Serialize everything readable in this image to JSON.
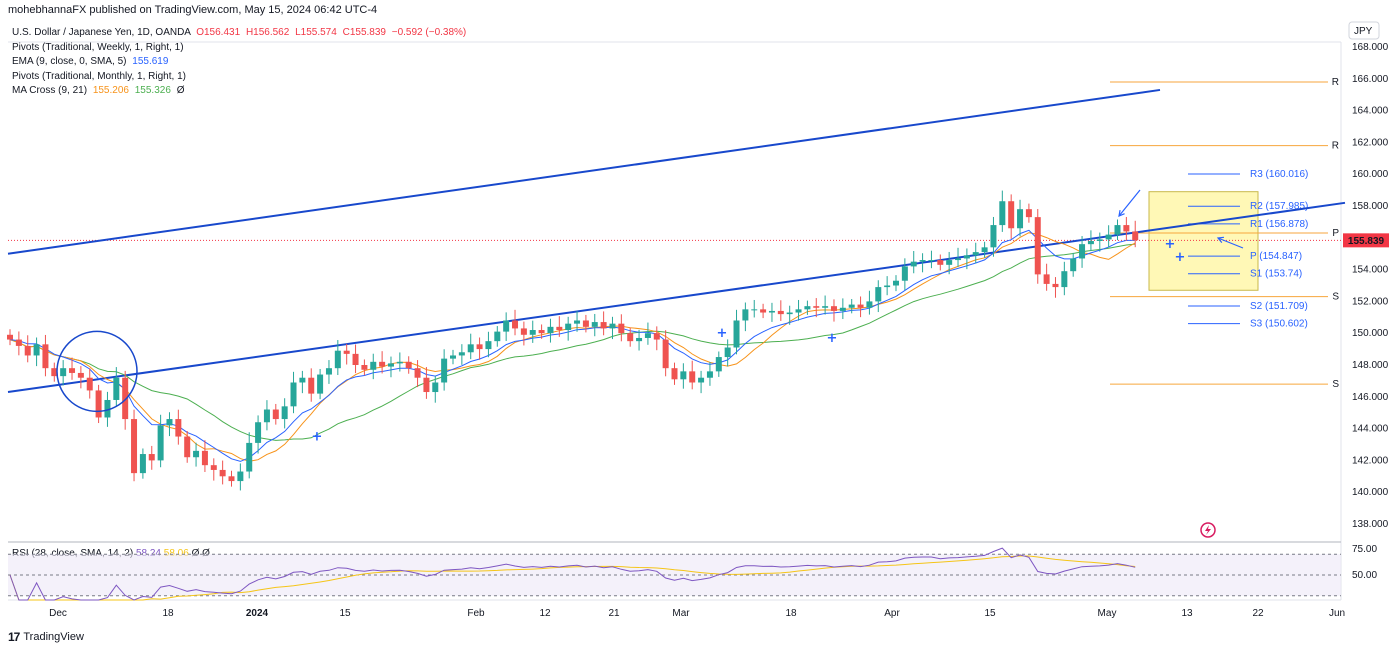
{
  "header": {
    "publisher": "mohebhannaFX published on TradingView.com, May 15, 2024 06:42 UTC-4"
  },
  "legend": {
    "symbol": "U.S. Dollar / Japanese Yen, 1D, OANDA",
    "ohlc": [
      "O156.431",
      "H156.562",
      "L155.574",
      "C155.839",
      "−0.592 (−0.38%)"
    ],
    "ind1": "Pivots (Traditional, Weekly, 1, Right, 1)",
    "ind2": "EMA (9, close, 0, SMA, 5)",
    "ind2_value": "155.619",
    "ind3": "Pivots (Traditional, Monthly, 1, Right, 1)",
    "ind4": "MA Cross (9, 21)",
    "ind4_v1": "155.206",
    "ind4_v2": "155.326",
    "ind4_v3": "Ø"
  },
  "currency": "JPY",
  "rsi_legend": {
    "label": "RSI (28, close, SMA, 14, 2)",
    "v1": "58.24",
    "v2": "58.06",
    "v3": "Ø  Ø"
  },
  "footer": {
    "brand": "TradingView",
    "logo": "17"
  },
  "colors": {
    "up": "#26a69a",
    "down": "#ef5350",
    "trend": "#1848cc",
    "ema": "#2962ff",
    "ma_fast": "#f7931a",
    "ma_slow": "#4caf50",
    "pivot_monthly": "#f7a63c",
    "pivot_weekly": "#2962ff",
    "rsi": "#7e57c2",
    "box": "#fff59d",
    "price_badge": "#f23645"
  },
  "chart_data": [
    {
      "type": "candlestick",
      "title": "U.S. Dollar / Japanese Yen, 1D, OANDA",
      "x_tick_labels": [
        "Dec",
        "18",
        "2024",
        "15",
        "Feb",
        "12",
        "21",
        "Mar",
        "18",
        "Apr",
        "15",
        "May",
        "13",
        "22",
        "Jun"
      ],
      "y_tick_labels": [
        "138.000",
        "140.000",
        "142.000",
        "144.000",
        "146.000",
        "148.000",
        "150.000",
        "152.000",
        "154.000",
        "156.000",
        "158.000",
        "160.000",
        "162.000",
        "164.000",
        "166.000",
        "168.000"
      ],
      "ylim": [
        136.5,
        168.5
      ],
      "last_price": "155.839",
      "close": [
        149.6,
        149.2,
        148.6,
        149.3,
        147.8,
        147.3,
        147.8,
        147.5,
        147.2,
        146.4,
        144.7,
        145.8,
        147.2,
        144.6,
        141.2,
        142.4,
        142.0,
        144.2,
        144.6,
        143.5,
        142.2,
        142.6,
        141.7,
        141.4,
        141.0,
        140.7,
        141.3,
        143.1,
        144.4,
        145.2,
        144.6,
        145.4,
        146.9,
        147.2,
        146.2,
        147.4,
        147.8,
        148.9,
        148.7,
        148.0,
        147.7,
        148.2,
        147.9,
        148.1,
        148.2,
        147.8,
        147.2,
        146.3,
        146.9,
        148.4,
        148.6,
        148.8,
        149.3,
        149.0,
        149.5,
        150.1,
        150.8,
        150.3,
        149.9,
        150.2,
        150.0,
        150.4,
        150.2,
        150.6,
        150.8,
        150.4,
        150.7,
        150.3,
        150.6,
        150.0,
        149.5,
        149.7,
        150.0,
        149.6,
        147.8,
        147.1,
        147.6,
        146.9,
        147.2,
        147.6,
        148.5,
        149.1,
        150.8,
        151.5,
        151.5,
        151.3,
        151.4,
        151.2,
        151.3,
        151.5,
        151.7,
        151.6,
        151.7,
        151.4,
        151.6,
        151.8,
        151.6,
        152.0,
        152.9,
        153.0,
        153.3,
        154.2,
        154.5,
        154.6,
        154.6,
        154.3,
        154.6,
        154.7,
        154.9,
        155.1,
        155.4,
        156.8,
        158.3,
        156.6,
        157.8,
        157.3,
        153.7,
        153.1,
        152.9,
        153.9,
        154.7,
        155.6,
        155.8,
        155.9,
        156.2,
        156.8,
        156.4,
        155.84
      ],
      "lines": [
        {
          "name": "Rising trendline upper",
          "from": [
            "2023-11-27",
            155.0
          ],
          "to": [
            "2024-05-08",
            165.3
          ]
        },
        {
          "name": "Rising trendline lower",
          "from": [
            "2023-11-27",
            146.3
          ],
          "to": [
            "2024-06-05",
            158.2
          ]
        }
      ],
      "weekly_pivots": [
        {
          "label": "R3 (160.016)",
          "value": 160.016
        },
        {
          "label": "R2 (157.985)",
          "value": 157.985
        },
        {
          "label": "R1 (156.878)",
          "value": 156.878
        },
        {
          "label": "P (154.847)",
          "value": 154.847
        },
        {
          "label": "S1 (153.74)",
          "value": 153.74
        },
        {
          "label": "S2 (151.709)",
          "value": 151.709
        },
        {
          "label": "S3 (150.602)",
          "value": 150.602
        }
      ],
      "monthly_pivots": [
        {
          "label": "R",
          "value": 165.8
        },
        {
          "label": "R",
          "value": 161.8
        },
        {
          "label": "P",
          "value": 156.3
        },
        {
          "label": "S",
          "value": 152.3
        },
        {
          "label": "S",
          "value": 146.8
        }
      ],
      "highlight_box": {
        "ymin": 152.7,
        "ymax": 158.9
      }
    },
    {
      "type": "line",
      "title": "RSI (28, close, SMA, 14, 2)",
      "y_tick_labels": [
        "50.00",
        "75.00"
      ],
      "levels": [
        70,
        50,
        30
      ],
      "ylim": [
        25,
        80
      ]
    }
  ]
}
